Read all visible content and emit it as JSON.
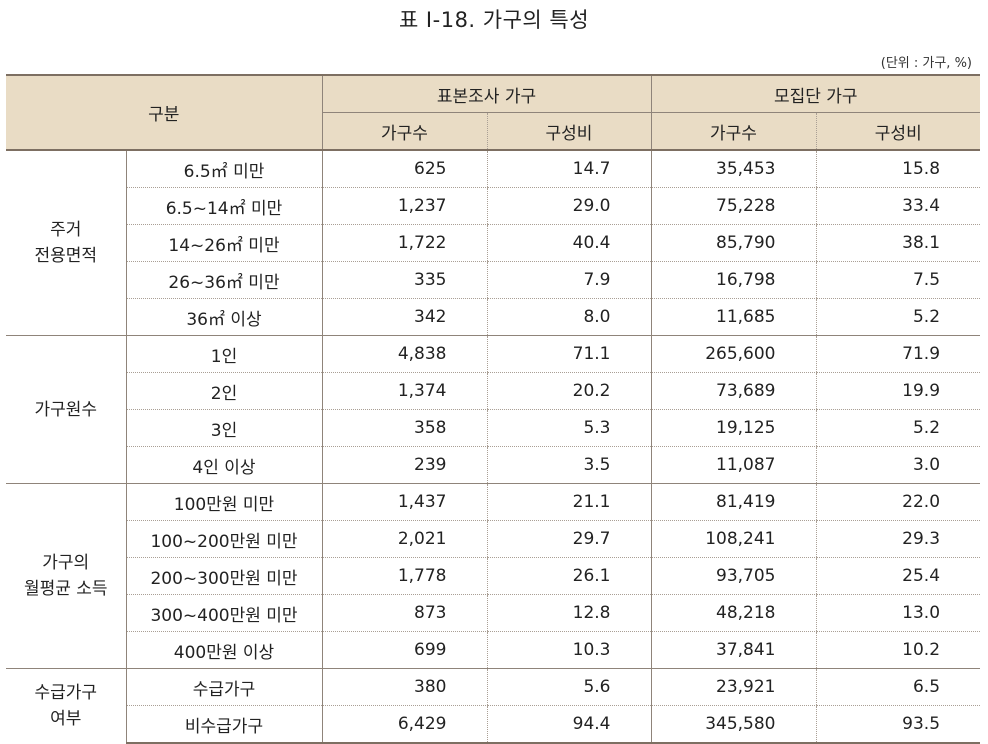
{
  "title": "표 Ⅰ-18. 가구의 특성",
  "unit": "(단위 : 가구, %)",
  "header": {
    "category": "구분",
    "sample_group": "표본조사 가구",
    "population_group": "모집단 가구",
    "households": "가구수",
    "ratio": "구성비",
    "households2": "가구수",
    "ratio2": "구성비"
  },
  "groups": [
    {
      "label_lines": [
        "주거",
        "전용면적"
      ],
      "rows": [
        {
          "label": "6.5㎡ 미만",
          "s_count": "625",
          "s_ratio": "14.7",
          "p_count": "35,453",
          "p_ratio": "15.8"
        },
        {
          "label": "6.5~14㎡ 미만",
          "s_count": "1,237",
          "s_ratio": "29.0",
          "p_count": "75,228",
          "p_ratio": "33.4"
        },
        {
          "label": "14~26㎡ 미만",
          "s_count": "1,722",
          "s_ratio": "40.4",
          "p_count": "85,790",
          "p_ratio": "38.1"
        },
        {
          "label": "26~36㎡ 미만",
          "s_count": "335",
          "s_ratio": "7.9",
          "p_count": "16,798",
          "p_ratio": "7.5"
        },
        {
          "label": "36㎡ 이상",
          "s_count": "342",
          "s_ratio": "8.0",
          "p_count": "11,685",
          "p_ratio": "5.2"
        }
      ]
    },
    {
      "label_lines": [
        "가구원수"
      ],
      "rows": [
        {
          "label": "1인",
          "s_count": "4,838",
          "s_ratio": "71.1",
          "p_count": "265,600",
          "p_ratio": "71.9"
        },
        {
          "label": "2인",
          "s_count": "1,374",
          "s_ratio": "20.2",
          "p_count": "73,689",
          "p_ratio": "19.9"
        },
        {
          "label": "3인",
          "s_count": "358",
          "s_ratio": "5.3",
          "p_count": "19,125",
          "p_ratio": "5.2"
        },
        {
          "label": "4인 이상",
          "s_count": "239",
          "s_ratio": "3.5",
          "p_count": "11,087",
          "p_ratio": "3.0"
        }
      ]
    },
    {
      "label_lines": [
        "가구의",
        "월평균 소득"
      ],
      "rows": [
        {
          "label": "100만원 미만",
          "s_count": "1,437",
          "s_ratio": "21.1",
          "p_count": "81,419",
          "p_ratio": "22.0"
        },
        {
          "label": "100~200만원 미만",
          "s_count": "2,021",
          "s_ratio": "29.7",
          "p_count": "108,241",
          "p_ratio": "29.3"
        },
        {
          "label": "200~300만원 미만",
          "s_count": "1,778",
          "s_ratio": "26.1",
          "p_count": "93,705",
          "p_ratio": "25.4"
        },
        {
          "label": "300~400만원 미만",
          "s_count": "873",
          "s_ratio": "12.8",
          "p_count": "48,218",
          "p_ratio": "13.0"
        },
        {
          "label": "400만원 이상",
          "s_count": "699",
          "s_ratio": "10.3",
          "p_count": "37,841",
          "p_ratio": "10.2"
        }
      ]
    },
    {
      "label_lines": [
        "수급가구",
        "여부"
      ],
      "rows": [
        {
          "label": "수급가구",
          "s_count": "380",
          "s_ratio": "5.6",
          "p_count": "23,921",
          "p_ratio": "6.5"
        },
        {
          "label": "비수급가구",
          "s_count": "6,429",
          "s_ratio": "94.4",
          "p_count": "345,580",
          "p_ratio": "93.5"
        }
      ]
    }
  ]
}
